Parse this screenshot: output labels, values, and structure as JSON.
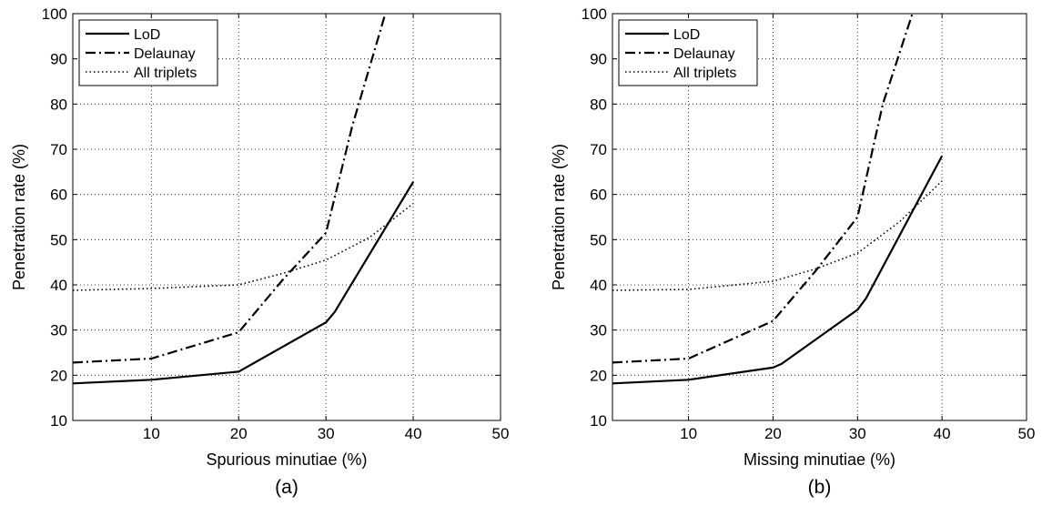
{
  "chart_data": [
    {
      "type": "line",
      "panel_label": "(a)",
      "xlabel": "Spurious minutiae (%)",
      "ylabel": "Penetration rate (%)",
      "xlim": [
        1,
        50
      ],
      "ylim": [
        10,
        100
      ],
      "xticks": [
        10,
        20,
        30,
        40,
        50
      ],
      "yticks": [
        10,
        20,
        30,
        40,
        50,
        60,
        70,
        80,
        90,
        100
      ],
      "grid": true,
      "legend_position": "top-left",
      "series": [
        {
          "name": "LoD",
          "style": "solid",
          "x": [
            1,
            10,
            20,
            30,
            31,
            40
          ],
          "y": [
            18.2,
            19.0,
            20.8,
            31.7,
            34.0,
            62.8
          ]
        },
        {
          "name": "Delaunay",
          "style": "dashdot",
          "x": [
            1,
            10,
            20,
            25,
            30,
            33,
            36.8
          ],
          "y": [
            22.8,
            23.7,
            29.5,
            41.0,
            51.5,
            75.0,
            100
          ]
        },
        {
          "name": "All triplets",
          "style": "dotted",
          "x": [
            1,
            10,
            20,
            25,
            30,
            35,
            40
          ],
          "y": [
            38.8,
            39.2,
            40.0,
            42.5,
            45.5,
            50.5,
            58.0
          ]
        }
      ]
    },
    {
      "type": "line",
      "panel_label": "(b)",
      "xlabel": "Missing minutiae (%)",
      "ylabel": "Penetration rate (%)",
      "xlim": [
        1,
        50
      ],
      "ylim": [
        10,
        100
      ],
      "xticks": [
        10,
        20,
        30,
        40,
        50
      ],
      "yticks": [
        10,
        20,
        30,
        40,
        50,
        60,
        70,
        80,
        90,
        100
      ],
      "grid": true,
      "legend_position": "top-left",
      "series": [
        {
          "name": "LoD",
          "style": "solid",
          "x": [
            1,
            10,
            20,
            21,
            30,
            31,
            40
          ],
          "y": [
            18.2,
            19.0,
            21.7,
            22.5,
            34.5,
            37.0,
            68.5
          ]
        },
        {
          "name": "Delaunay",
          "style": "dashdot",
          "x": [
            1,
            10,
            20,
            25,
            30,
            33,
            36.5
          ],
          "y": [
            22.8,
            23.7,
            32.0,
            43.0,
            55.0,
            80.0,
            100
          ]
        },
        {
          "name": "All triplets",
          "style": "dotted",
          "x": [
            1,
            10,
            20,
            25,
            30,
            35,
            40
          ],
          "y": [
            38.8,
            39.0,
            40.8,
            43.5,
            47.0,
            54.0,
            63.0
          ]
        }
      ]
    }
  ]
}
